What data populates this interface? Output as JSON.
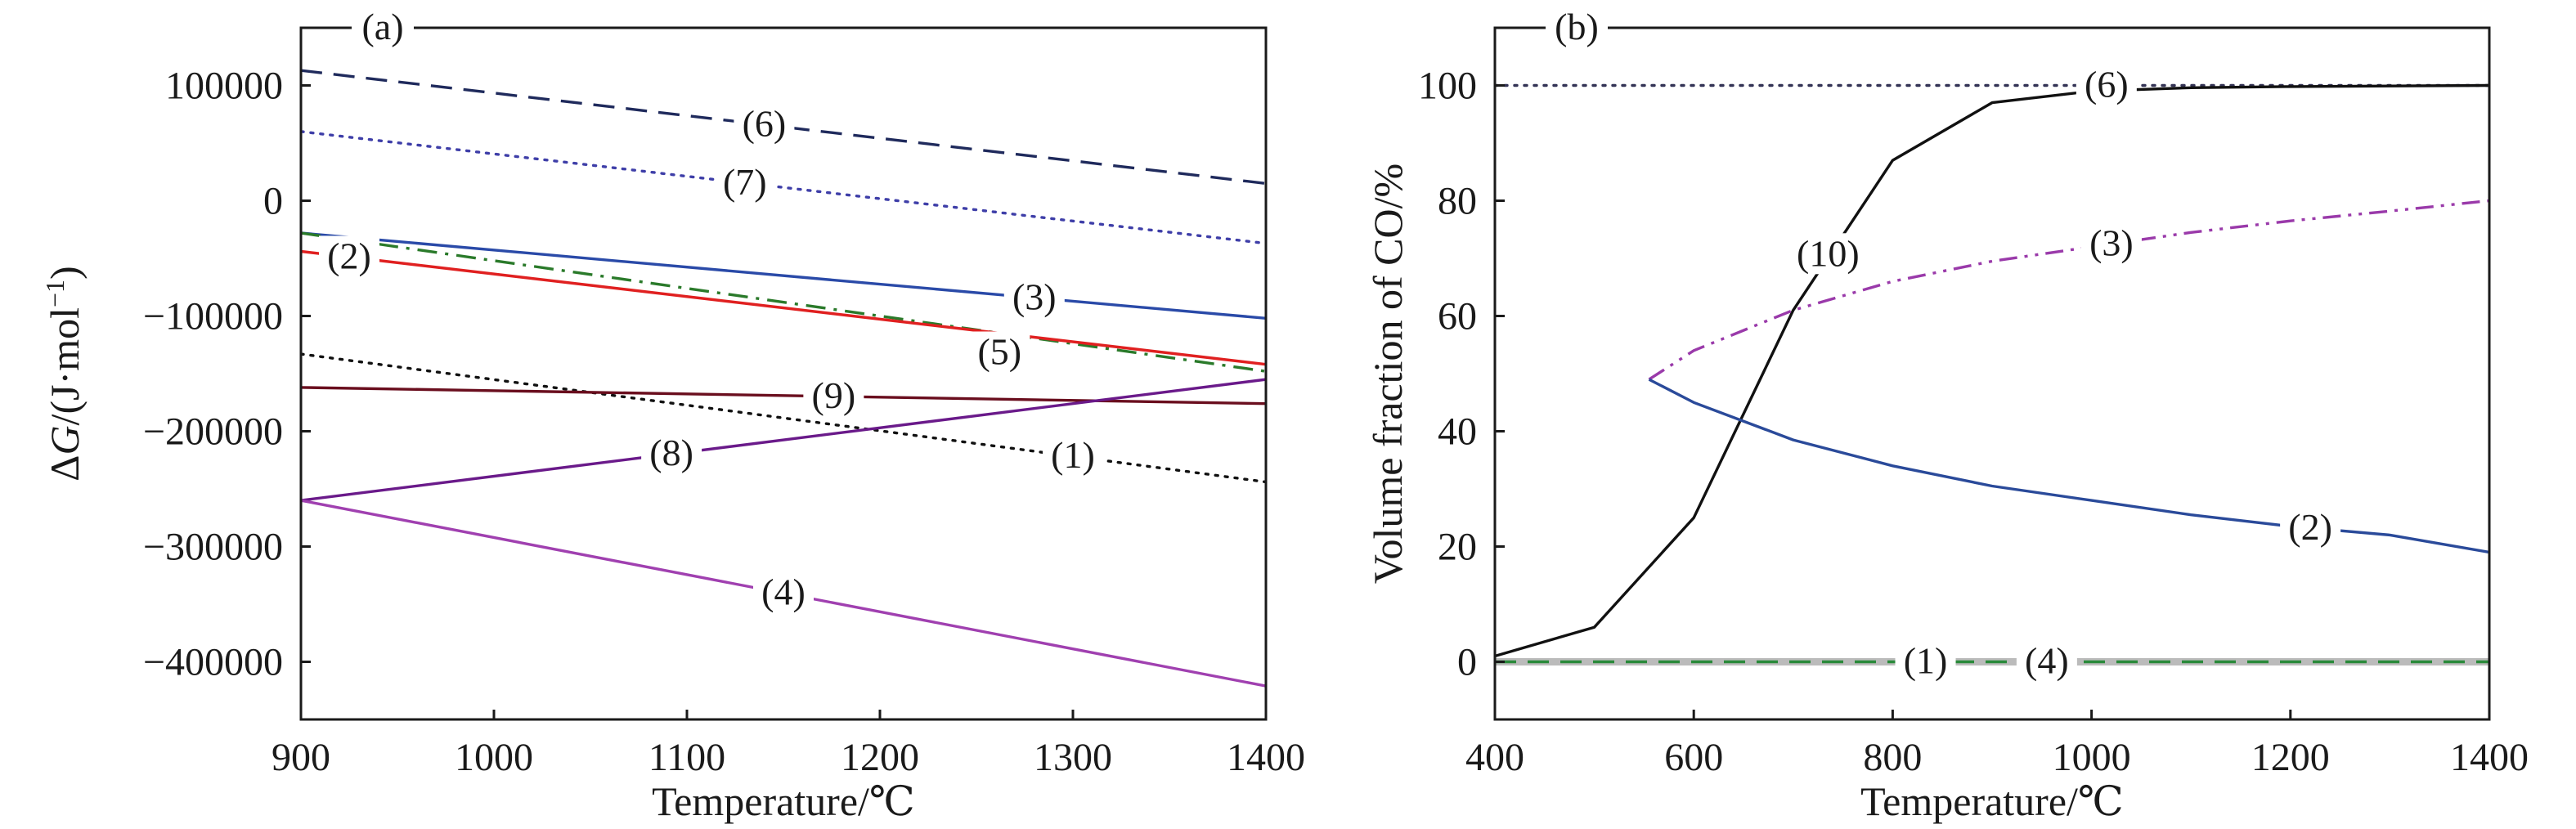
{
  "chart_data": [
    {
      "type": "line",
      "panel_label": "(a)",
      "xlabel": "Temperature/℃",
      "ylabel_prefix": "Δ",
      "ylabel_var": "G",
      "ylabel_unit": "/(J·mol",
      "ylabel_exp": "−1",
      "ylabel_close": ")",
      "xlim": [
        900,
        1400
      ],
      "ylim": [
        -450000,
        150000
      ],
      "xticks": [
        900,
        1000,
        1100,
        1200,
        1300,
        1400
      ],
      "xtick_labels": [
        "900",
        "1000",
        "1100",
        "1200",
        "1300",
        "1400"
      ],
      "yticks": [
        100000,
        0,
        -100000,
        -200000,
        -300000,
        -400000
      ],
      "ytick_labels": [
        "100000",
        "0",
        "−100000",
        "−200000",
        "−300000",
        "−400000"
      ],
      "grid": false,
      "series": [
        {
          "name": "(6)",
          "color": "#1f2a5c",
          "dash": "dashed",
          "x": [
            900,
            1400
          ],
          "y": [
            113000,
            15000
          ],
          "label_at": 1140
        },
        {
          "name": "(7)",
          "color": "#3e3ea8",
          "dash": "dotted",
          "x": [
            900,
            1400
          ],
          "y": [
            60000,
            -37000
          ],
          "label_at": 1130
        },
        {
          "name": "(3)",
          "color": "#2a4aa8",
          "dash": "solid",
          "x": [
            900,
            1400
          ],
          "y": [
            -28000,
            -102000
          ],
          "label_at": 1280
        },
        {
          "name": "(5)",
          "color": "#2a7a2a",
          "dash": "dashdot",
          "x": [
            900,
            1400
          ],
          "y": [
            -28000,
            -148000
          ],
          "label_at": 1262,
          "label_dy": 24
        },
        {
          "name": "(2)",
          "color": "#e02020",
          "dash": "solid",
          "x": [
            900,
            1400
          ],
          "y": [
            -44000,
            -142000
          ],
          "label_at": 925
        },
        {
          "name": "(1)",
          "color": "#111111",
          "dash": "dotted",
          "x": [
            900,
            1400
          ],
          "y": [
            -133000,
            -244000
          ],
          "label_at": 1300
        },
        {
          "name": "(9)",
          "color": "#6a0e1e",
          "dash": "solid",
          "x": [
            900,
            1400
          ],
          "y": [
            -162000,
            -176000
          ],
          "label_at": 1176
        },
        {
          "name": "(8)",
          "color": "#6a1a8a",
          "dash": "solid",
          "x": [
            900,
            1400
          ],
          "y": [
            -260000,
            -155000
          ],
          "label_at": 1092
        },
        {
          "name": "(4)",
          "color": "#a040b0",
          "dash": "solid",
          "x": [
            900,
            1400
          ],
          "y": [
            -260000,
            -421000
          ],
          "label_at": 1150
        }
      ]
    },
    {
      "type": "line",
      "panel_label": "(b)",
      "xlabel": "Temperature/℃",
      "ylabel": "Volume fraction of CO/%",
      "xlim": [
        400,
        1400
      ],
      "ylim": [
        -10,
        110
      ],
      "xticks": [
        400,
        600,
        800,
        1000,
        1200,
        1400
      ],
      "xtick_labels": [
        "400",
        "600",
        "800",
        "1000",
        "1200",
        "1400"
      ],
      "yticks": [
        0,
        20,
        40,
        60,
        80,
        100
      ],
      "ytick_labels": [
        "0",
        "20",
        "40",
        "60",
        "80",
        "100"
      ],
      "grid": false,
      "series": [
        {
          "name": "(6)",
          "color": "#333355",
          "dash": "dotted",
          "x": [
            400,
            1400
          ],
          "y": [
            100,
            100
          ],
          "label_at": 1015
        },
        {
          "name": "(10)",
          "color": "#111111",
          "dash": "solid",
          "x": [
            400,
            500,
            600,
            700,
            800,
            900,
            1000,
            1100,
            1200,
            1300,
            1400
          ],
          "y": [
            1,
            6,
            25,
            61,
            87,
            97,
            99,
            99.6,
            99.8,
            99.9,
            100
          ],
          "label_at": 735,
          "label_dy": -4
        },
        {
          "name": "(3)",
          "color": "#9a3aaa",
          "dash": "dashdotdot",
          "x": [
            555,
            600,
            700,
            800,
            900,
            1000,
            1100,
            1200,
            1300,
            1400
          ],
          "y": [
            49,
            54,
            61,
            66,
            69.5,
            72,
            74.5,
            76.5,
            78.2,
            80
          ],
          "label_at": 1020
        },
        {
          "name": "(2)",
          "color": "#2a4a9a",
          "dash": "solid",
          "x": [
            555,
            600,
            700,
            800,
            900,
            1000,
            1100,
            1200,
            1300,
            1400
          ],
          "y": [
            49,
            45,
            38.5,
            34,
            30.5,
            28,
            25.5,
            23.5,
            22,
            19
          ],
          "label_at": 1220
        },
        {
          "name": "(1)",
          "color": "#2a8a3a",
          "dash": "dashed",
          "x": [
            400,
            1400
          ],
          "y": [
            0,
            0
          ],
          "label_at": 833
        },
        {
          "name": "(4)",
          "color": "#2a8a3a",
          "dash": "dashed",
          "x": [
            400,
            1400
          ],
          "y": [
            0,
            0
          ],
          "label_at": 955
        }
      ]
    }
  ]
}
